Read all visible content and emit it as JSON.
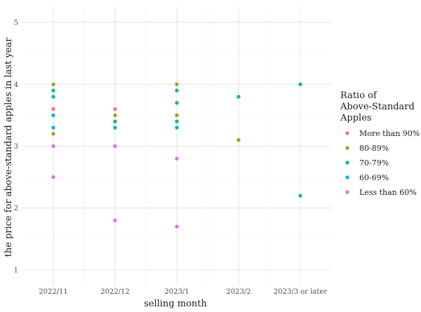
{
  "chart_data": {
    "type": "scatter",
    "xlabel": "selling month",
    "ylabel": "the price for above-standard apples in last year",
    "categories": [
      "2022/11",
      "2022/12",
      "2023/1",
      "2023/2",
      "2023/3 or later"
    ],
    "ylim": [
      0.75,
      5.25
    ],
    "yticks": [
      1,
      2,
      3,
      4,
      5
    ],
    "grid": true,
    "legend": {
      "title_lines": [
        "Ratio of",
        "Above-Standard",
        "Apples"
      ],
      "position": "right"
    },
    "series": [
      {
        "name": "More than 90%",
        "color": "#F8766D",
        "points": [
          {
            "x": "2022/11",
            "y": 3.6
          },
          {
            "x": "2022/12",
            "y": 3.6
          }
        ]
      },
      {
        "name": "80-89%",
        "color": "#A3A500",
        "points": [
          {
            "x": "2022/11",
            "y": 4.0
          },
          {
            "x": "2022/11",
            "y": 3.2
          },
          {
            "x": "2022/12",
            "y": 3.5
          },
          {
            "x": "2023/1",
            "y": 4.0
          },
          {
            "x": "2023/1",
            "y": 3.5
          },
          {
            "x": "2023/2",
            "y": 3.1
          }
        ]
      },
      {
        "name": "70-79%",
        "color": "#00BF7D",
        "points": [
          {
            "x": "2022/11",
            "y": 3.9
          },
          {
            "x": "2022/11",
            "y": 3.8
          },
          {
            "x": "2022/12",
            "y": 3.4
          },
          {
            "x": "2022/12",
            "y": 3.3
          },
          {
            "x": "2023/1",
            "y": 3.9
          },
          {
            "x": "2023/1",
            "y": 3.7
          },
          {
            "x": "2023/1",
            "y": 3.4
          },
          {
            "x": "2023/1",
            "y": 3.3
          },
          {
            "x": "2023/2",
            "y": 3.8
          },
          {
            "x": "2023/3 or later",
            "y": 4.0
          },
          {
            "x": "2023/3 or later",
            "y": 2.2
          }
        ]
      },
      {
        "name": "60-69%",
        "color": "#00B0F6",
        "points": [
          {
            "x": "2022/11",
            "y": 3.5
          },
          {
            "x": "2022/11",
            "y": 3.3
          }
        ]
      },
      {
        "name": "Less than 60%",
        "color": "#E76BF3",
        "points": [
          {
            "x": "2022/11",
            "y": 3.0
          },
          {
            "x": "2022/11",
            "y": 2.5
          },
          {
            "x": "2022/12",
            "y": 3.0
          },
          {
            "x": "2022/12",
            "y": 1.8
          },
          {
            "x": "2023/1",
            "y": 2.8
          },
          {
            "x": "2023/1",
            "y": 1.7
          }
        ]
      }
    ]
  }
}
